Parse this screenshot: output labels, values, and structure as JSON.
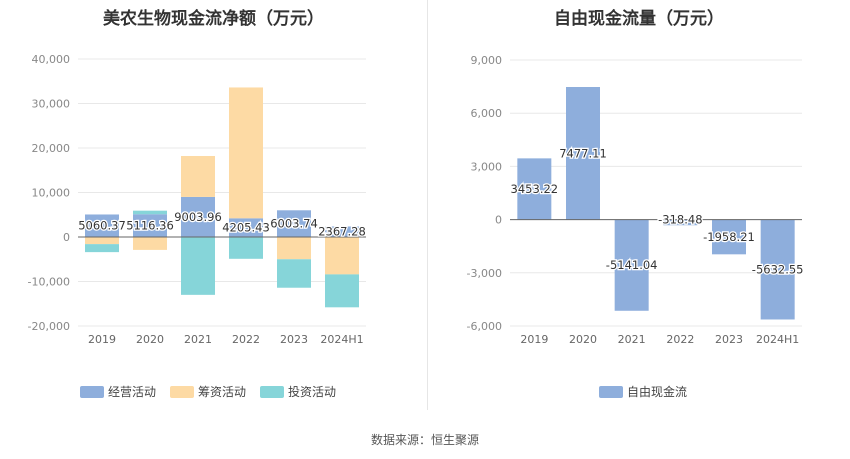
{
  "source_text": "数据来源：恒生聚源",
  "chart_data": [
    {
      "type": "bar",
      "stacked": true,
      "title": "美农生物现金流净额（万元）",
      "categories": [
        "2019",
        "2020",
        "2021",
        "2022",
        "2023",
        "2024H1"
      ],
      "ylim": [
        -20000,
        40000
      ],
      "yticks": [
        40000,
        30000,
        20000,
        10000,
        0,
        -10000,
        -20000
      ],
      "ytick_labels": [
        "40,000",
        "30,000",
        "20,000",
        "10,000",
        "0",
        "-10,000",
        "-20,000"
      ],
      "grid": true,
      "legend_position": "bottom",
      "series": [
        {
          "name": "经营活动",
          "color": "#8eaedc",
          "values": [
            5060.37,
            5116.36,
            9003.96,
            4205.43,
            6003.74,
            2367.28
          ]
        },
        {
          "name": "筹资活动",
          "color": "#fddaa4",
          "values": [
            -1600,
            -2900,
            9200,
            29400,
            -5000,
            -8400
          ]
        },
        {
          "name": "投资活动",
          "color": "#86d5d9",
          "values": [
            -1800,
            800,
            -13000,
            -4900,
            -6400,
            -7400
          ]
        }
      ],
      "labels": [
        "5060.37",
        "5116.36",
        "9003.96",
        "4205.43",
        "6003.74",
        "2367.28"
      ]
    },
    {
      "type": "bar",
      "title": "自由现金流量（万元）",
      "categories": [
        "2019",
        "2020",
        "2021",
        "2022",
        "2023",
        "2024H1"
      ],
      "ylim": [
        -6000,
        9000
      ],
      "yticks": [
        9000,
        6000,
        3000,
        0,
        -3000,
        -6000
      ],
      "ytick_labels": [
        "9,000",
        "6,000",
        "3,000",
        "0",
        "-3,000",
        "-6,000"
      ],
      "grid": true,
      "legend_position": "bottom",
      "series": [
        {
          "name": "自由现金流",
          "color": "#8eaedc",
          "values": [
            3453.22,
            7477.11,
            -5141.04,
            -318.48,
            -1958.21,
            -5632.55
          ]
        }
      ],
      "labels": [
        "3453.22",
        "7477.11",
        "-5141.04",
        "-318.48",
        "-1958.21",
        "-5632.55"
      ]
    }
  ]
}
